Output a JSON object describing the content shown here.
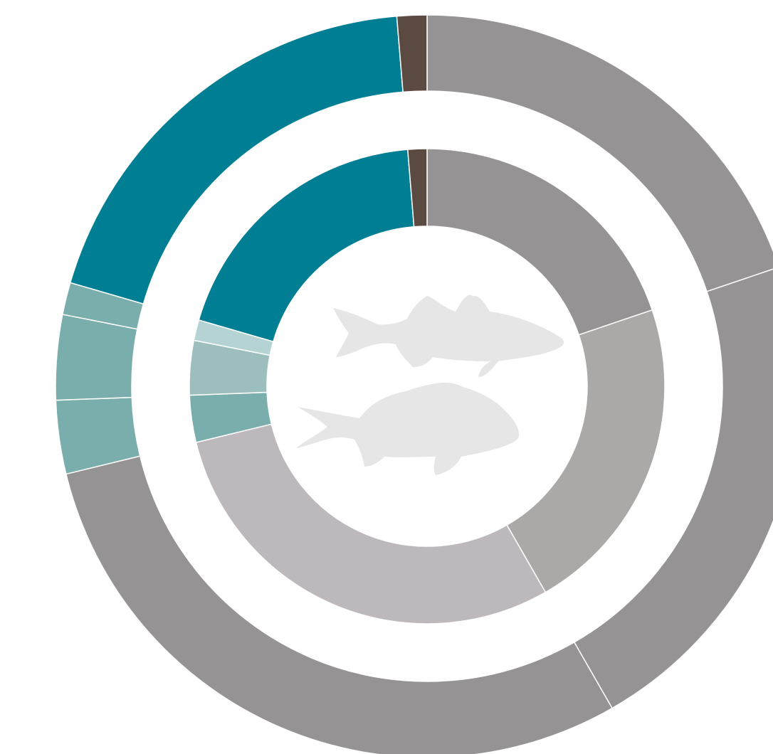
{
  "chart_data": {
    "type": "donut",
    "series": [
      {
        "values": [
          19.8,
          21.9,
          29.5,
          3.2,
          3.7,
          1.4,
          19.2,
          1.3
        ],
        "colors": [
          "#959393",
          "#959393",
          "#959393",
          "#7aaead",
          "#7aaead",
          "#7aaead",
          "#007e93",
          "#5b4a41"
        ]
      },
      {
        "values": [
          19.8,
          21.9,
          29.5,
          3.2,
          3.7,
          1.4,
          19.2,
          1.3
        ],
        "colors": [
          "#959393",
          "#aaa9a7",
          "#bdb8bc",
          "#7aaead",
          "#9cbfbd",
          "#b5d3d2",
          "#007e93",
          "#5b4a41"
        ]
      }
    ]
  }
}
